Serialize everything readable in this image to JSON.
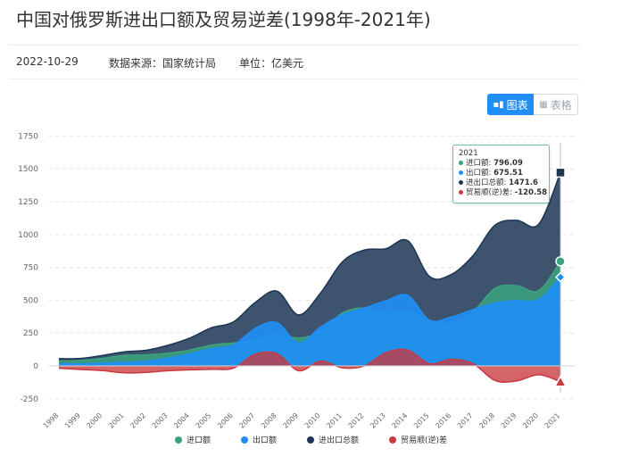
{
  "header": {
    "title": "中国对俄罗斯进出口额及贸易逆差(1998年-2021年)",
    "date": "2022-10-29",
    "source": "数据来源：国家统计局",
    "unit": "单位：亿美元"
  },
  "toggle": {
    "chart_label": "图表",
    "table_label": "表格",
    "chart_icon": "bar-chart-icon",
    "table_icon": "table-icon"
  },
  "colors": {
    "import": "#3aa37f",
    "export": "#1f8ff7",
    "total": "#1c3553",
    "balance": "#c9393f",
    "accent": "#1f8ff7"
  },
  "tooltip": {
    "year": "2021",
    "rows": [
      {
        "label": "进口额:",
        "value": "796.09"
      },
      {
        "label": "出口额:",
        "value": "675.51"
      },
      {
        "label": "进出口总额:",
        "value": "1471.6"
      },
      {
        "label": "贸易顺(逆)差:",
        "value": "-120.58"
      }
    ]
  },
  "chart_data": {
    "type": "area",
    "categories": [
      "1998",
      "1999",
      "2000",
      "2001",
      "2002",
      "2003",
      "2004",
      "2005",
      "2006",
      "2007",
      "2008",
      "2009",
      "2010",
      "2011",
      "2012",
      "2013",
      "2014",
      "2015",
      "2016",
      "2017",
      "2018",
      "2019",
      "2020",
      "2021"
    ],
    "series": [
      {
        "name": "进口额",
        "values": [
          36,
          42,
          58,
          80,
          84,
          97,
          121,
          158,
          175,
          197,
          238,
          212,
          259,
          403,
          441,
          396,
          416,
          332,
          323,
          413,
          591,
          611,
          572,
          796.09
        ]
      },
      {
        "name": "出口额",
        "values": [
          18,
          15,
          22,
          27,
          35,
          60,
          91,
          132,
          158,
          285,
          330,
          175,
          296,
          389,
          440,
          496,
          537,
          348,
          373,
          429,
          480,
          497,
          505,
          675.51
        ]
      },
      {
        "name": "进出口总额",
        "values": [
          55,
          57,
          80,
          107,
          119,
          157,
          212,
          291,
          334,
          482,
          569,
          388,
          555,
          792,
          882,
          892,
          953,
          680,
          696,
          842,
          1071,
          1108,
          1078,
          1471.6
        ]
      },
      {
        "name": "贸易顺(逆)差",
        "values": [
          -18,
          -27,
          -36,
          -53,
          -49,
          -37,
          -30,
          -26,
          -17,
          88,
          93,
          -37,
          37,
          -14,
          -1,
          100,
          121,
          16,
          50,
          16,
          -111,
          -114,
          -67,
          -120.58
        ]
      }
    ],
    "y_ticks": [
      -250,
      0,
      250,
      500,
      750,
      1000,
      1250,
      1500,
      1750
    ],
    "ylim": [
      -250,
      1750
    ],
    "grid": true,
    "legend": "bottom-center"
  }
}
